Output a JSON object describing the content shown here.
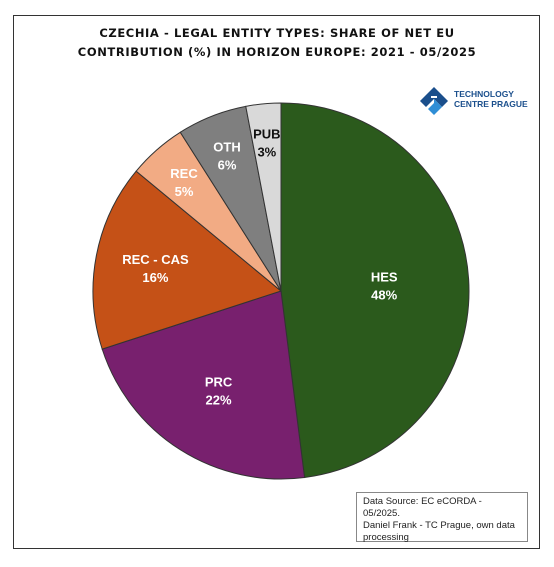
{
  "title_lines": [
    "CZECHIA - LEGAL ENTITY TYPES: SHARE OF NET EU",
    "CONTRIBUTION (%) IN HORIZON EUROPE: 2021  - 05/2025"
  ],
  "logo": {
    "icon": "tc-prague-logo-icon",
    "line1": "TECHNOLOGY",
    "line2": "CENTRE PRAGUE",
    "color": "#1b4f8c"
  },
  "source_note": {
    "line1": "Data Source: EC eCORDA - 05/2025.",
    "line2": "Daniel Frank - TC Prague, own data",
    "line3": "processing"
  },
  "chart_data": {
    "type": "pie",
    "title": "CZECHIA - LEGAL ENTITY TYPES: SHARE OF NET EU CONTRIBUTION (%) IN HORIZON EUROPE: 2021  - 05/2025",
    "unit": "%",
    "start": "12 o'clock",
    "direction": "clockwise",
    "legend": "none",
    "slices": [
      {
        "category": "HES",
        "value": 48,
        "label": "48%",
        "color": "#2b5a1c",
        "label_color": "#ffffff"
      },
      {
        "category": "PRC",
        "value": 22,
        "label": "22%",
        "color": "#78206e",
        "label_color": "#ffffff"
      },
      {
        "category": "REC - CAS",
        "value": 16,
        "label": "16%",
        "color": "#c55117",
        "label_color": "#ffffff"
      },
      {
        "category": "REC",
        "value": 5,
        "label": "5%",
        "color": "#f2ab84",
        "label_color": "#ffffff"
      },
      {
        "category": "OTH",
        "value": 6,
        "label": "6%",
        "color": "#7f7f7f",
        "label_color": "#ffffff"
      },
      {
        "category": "PUB",
        "value": 3,
        "label": "3%",
        "color": "#d9d9d9",
        "label_color": "#111111"
      }
    ]
  }
}
